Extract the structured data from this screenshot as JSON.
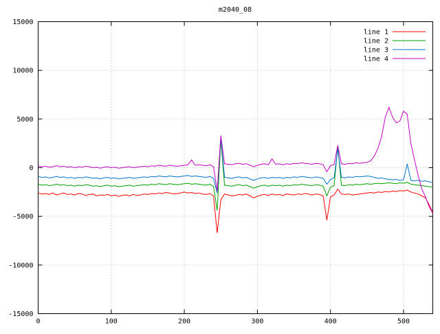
{
  "window": {
    "title": "m2040_08"
  },
  "chart_data": {
    "type": "line",
    "title": "m2040_08",
    "xlabel": "",
    "ylabel": "",
    "xlim": [
      0,
      540
    ],
    "ylim": [
      -15000,
      15000
    ],
    "x_ticks": [
      0,
      100,
      200,
      300,
      400,
      500
    ],
    "y_ticks": [
      -15000,
      -10000,
      -5000,
      0,
      5000,
      10000,
      15000
    ],
    "grid": true,
    "legend_position": "top-right",
    "background_color": "#ffffff",
    "grid_color": "#b4b4b4",
    "x": [
      0,
      5,
      10,
      15,
      20,
      25,
      30,
      35,
      40,
      45,
      50,
      55,
      60,
      65,
      70,
      75,
      80,
      85,
      90,
      95,
      100,
      105,
      110,
      115,
      120,
      125,
      130,
      135,
      140,
      145,
      150,
      155,
      160,
      165,
      170,
      175,
      180,
      185,
      190,
      195,
      200,
      205,
      210,
      215,
      220,
      225,
      230,
      235,
      240,
      245,
      250,
      255,
      260,
      265,
      270,
      275,
      280,
      285,
      290,
      295,
      300,
      305,
      310,
      315,
      320,
      325,
      330,
      335,
      340,
      345,
      350,
      355,
      360,
      365,
      370,
      375,
      380,
      385,
      390,
      395,
      400,
      405,
      410,
      415,
      420,
      425,
      430,
      435,
      440,
      445,
      450,
      455,
      460,
      465,
      470,
      475,
      480,
      485,
      490,
      495,
      500,
      505,
      510,
      515,
      520,
      525,
      530,
      535,
      540
    ],
    "series": [
      {
        "name": "line 1",
        "color": "#ff0000",
        "values": [
          -2600,
          -2700,
          -2650,
          -2750,
          -2600,
          -2800,
          -2700,
          -2600,
          -2750,
          -2700,
          -2800,
          -2650,
          -2700,
          -2850,
          -2750,
          -2700,
          -2900,
          -2800,
          -2850,
          -2750,
          -2900,
          -2800,
          -2950,
          -2850,
          -2800,
          -2900,
          -2750,
          -2850,
          -2800,
          -2700,
          -2750,
          -2650,
          -2700,
          -2600,
          -2650,
          -2550,
          -2600,
          -2700,
          -2650,
          -2600,
          -2500,
          -2600,
          -2550,
          -2650,
          -2600,
          -2700,
          -2750,
          -2650,
          -2900,
          -6700,
          -3300,
          -2700,
          -2800,
          -2900,
          -2850,
          -2750,
          -2800,
          -2700,
          -2900,
          -3100,
          -2950,
          -2800,
          -2750,
          -2850,
          -2700,
          -2800,
          -2750,
          -2850,
          -2700,
          -2750,
          -2800,
          -2700,
          -2750,
          -2650,
          -2700,
          -2800,
          -2700,
          -2750,
          -2900,
          -5400,
          -3000,
          -2800,
          -2200,
          -2700,
          -2750,
          -2700,
          -2800,
          -2750,
          -2700,
          -2650,
          -2600,
          -2550,
          -2600,
          -2500,
          -2550,
          -2450,
          -2500,
          -2400,
          -2450,
          -2350,
          -2400,
          -2300,
          -2500,
          -2600,
          -2700,
          -2900,
          -3100,
          -3800,
          -4600
        ]
      },
      {
        "name": "line 2",
        "color": "#009e00",
        "values": [
          -1700,
          -1800,
          -1750,
          -1850,
          -1800,
          -1700,
          -1800,
          -1750,
          -1850,
          -1800,
          -1900,
          -1800,
          -1850,
          -1750,
          -1800,
          -1900,
          -1850,
          -1950,
          -1850,
          -1800,
          -1900,
          -1850,
          -1950,
          -1900,
          -1850,
          -1800,
          -1900,
          -1850,
          -1800,
          -1750,
          -1800,
          -1700,
          -1750,
          -1650,
          -1700,
          -1750,
          -1650,
          -1700,
          -1750,
          -1700,
          -1650,
          -1600,
          -1700,
          -1650,
          -1700,
          -1750,
          -1800,
          -1700,
          -1900,
          -4400,
          2900,
          -1800,
          -1850,
          -1900,
          -1800,
          -1750,
          -1850,
          -1800,
          -1950,
          -2100,
          -1950,
          -1850,
          -1800,
          -1900,
          -1800,
          -1850,
          -1800,
          -1900,
          -1800,
          -1850,
          -1750,
          -1800,
          -1700,
          -1750,
          -1800,
          -1850,
          -1750,
          -1800,
          -1900,
          -2900,
          -2000,
          -1850,
          2200,
          -1800,
          -1850,
          -1750,
          -1800,
          -1700,
          -1750,
          -1700,
          -1650,
          -1700,
          -1650,
          -1600,
          -1650,
          -1600,
          -1550,
          -1600,
          -1650,
          -1550,
          -1600,
          -1500,
          -1700,
          -1750,
          -1800,
          -1850,
          -1900,
          -1950,
          -2000
        ]
      },
      {
        "name": "line 3",
        "color": "#0070c8",
        "values": [
          -900,
          -1000,
          -950,
          -1050,
          -1000,
          -900,
          -1000,
          -950,
          -1050,
          -1000,
          -1100,
          -1000,
          -1050,
          -950,
          -1000,
          -1100,
          -1050,
          -1150,
          -1050,
          -1000,
          -1100,
          -1050,
          -1150,
          -1100,
          -1050,
          -1000,
          -1100,
          -1050,
          -1000,
          -950,
          -1000,
          -900,
          -950,
          -850,
          -900,
          -950,
          -850,
          -900,
          -950,
          -900,
          -850,
          -800,
          -900,
          -850,
          -900,
          -950,
          -1000,
          -900,
          -1100,
          -2600,
          3100,
          -1000,
          -1050,
          -1100,
          -1000,
          -950,
          -1050,
          -1000,
          -1150,
          -1300,
          -1150,
          -1050,
          -1000,
          -1100,
          -1000,
          -1050,
          -1000,
          -1100,
          -1000,
          -1050,
          -950,
          -1000,
          -900,
          -950,
          -1000,
          -1050,
          -950,
          -1000,
          -1100,
          -1700,
          -1200,
          -1050,
          1900,
          -1000,
          -1050,
          -950,
          -1000,
          -900,
          -950,
          -900,
          -850,
          -900,
          -1000,
          -1100,
          -1050,
          -1150,
          -1200,
          -1250,
          -1200,
          -1300,
          -1250,
          400,
          -1300,
          -1350,
          -1300,
          -1400,
          -1350,
          -1450,
          -1500
        ]
      },
      {
        "name": "line 4",
        "color": "#bf00bf",
        "values": [
          200,
          100,
          150,
          50,
          100,
          200,
          100,
          150,
          50,
          100,
          0,
          100,
          50,
          150,
          100,
          0,
          50,
          -50,
          50,
          100,
          0,
          50,
          -50,
          0,
          50,
          100,
          0,
          50,
          100,
          150,
          100,
          200,
          150,
          250,
          200,
          150,
          250,
          200,
          150,
          200,
          250,
          300,
          800,
          250,
          300,
          250,
          200,
          300,
          100,
          -2400,
          3300,
          400,
          350,
          300,
          400,
          450,
          350,
          400,
          250,
          100,
          250,
          350,
          400,
          300,
          900,
          350,
          400,
          300,
          400,
          350,
          450,
          400,
          500,
          450,
          400,
          350,
          450,
          400,
          300,
          -400,
          200,
          350,
          2300,
          400,
          350,
          450,
          400,
          500,
          450,
          500,
          550,
          700,
          1200,
          2000,
          3200,
          5200,
          6200,
          5200,
          4600,
          4800,
          5800,
          5500,
          2500,
          800,
          -800,
          -2200,
          -3000,
          -4000,
          -4700
        ]
      }
    ]
  }
}
